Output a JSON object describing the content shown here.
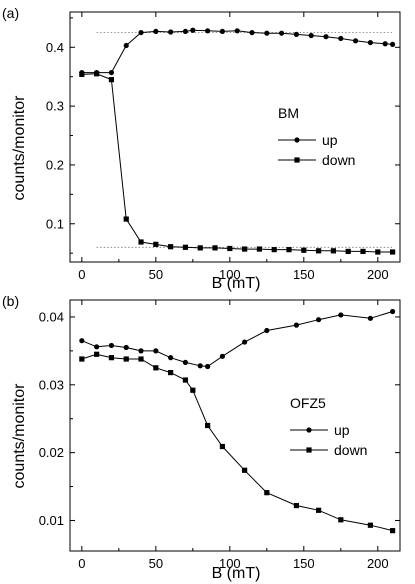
{
  "chart_data": [
    {
      "panel_label": "(a)",
      "type": "line",
      "xlabel": "B (mT)",
      "ylabel": "counts/monitor",
      "xlim": [
        -8,
        215
      ],
      "ylim": [
        0.035,
        0.46
      ],
      "xticks": [
        0,
        50,
        100,
        150,
        200
      ],
      "yticks": [
        0.1,
        0.2,
        0.3,
        0.4
      ],
      "grid": false,
      "legend": {
        "title": "BM",
        "placement": "right-middle"
      },
      "guide_lines": [
        {
          "x": [
            10,
            210
          ],
          "y": [
            0.425,
            0.425
          ]
        },
        {
          "x": [
            10,
            210
          ],
          "y": [
            0.06,
            0.06
          ]
        }
      ],
      "series": [
        {
          "name": "up",
          "marker": "circle",
          "x": [
            0,
            10,
            20,
            30,
            40,
            50,
            60,
            70,
            75,
            85,
            95,
            105,
            115,
            125,
            135,
            145,
            155,
            165,
            175,
            185,
            195,
            205,
            210
          ],
          "y": [
            0.357,
            0.357,
            0.357,
            0.403,
            0.425,
            0.427,
            0.426,
            0.427,
            0.429,
            0.428,
            0.427,
            0.428,
            0.425,
            0.424,
            0.424,
            0.422,
            0.42,
            0.418,
            0.415,
            0.411,
            0.408,
            0.406,
            0.405
          ]
        },
        {
          "name": "down",
          "marker": "square",
          "x": [
            0,
            10,
            20,
            30,
            40,
            50,
            60,
            70,
            80,
            90,
            100,
            110,
            120,
            130,
            140,
            150,
            160,
            170,
            180,
            190,
            200,
            210
          ],
          "y": [
            0.354,
            0.355,
            0.345,
            0.108,
            0.069,
            0.065,
            0.061,
            0.06,
            0.059,
            0.059,
            0.058,
            0.057,
            0.057,
            0.056,
            0.056,
            0.055,
            0.054,
            0.054,
            0.053,
            0.053,
            0.052,
            0.052
          ]
        }
      ]
    },
    {
      "panel_label": "(b)",
      "type": "line",
      "xlabel": "B (mT)",
      "ylabel": "counts/monitor",
      "xlim": [
        -8,
        215
      ],
      "ylim": [
        0.0055,
        0.0425
      ],
      "xticks": [
        0,
        50,
        100,
        150,
        200
      ],
      "yticks": [
        0.01,
        0.02,
        0.03,
        0.04
      ],
      "grid": false,
      "legend": {
        "title": "OFZ5",
        "placement": "right-middle"
      },
      "series": [
        {
          "name": "up",
          "marker": "circle",
          "x": [
            0,
            10,
            20,
            30,
            40,
            50,
            60,
            70,
            80,
            85,
            95,
            110,
            125,
            145,
            160,
            175,
            195,
            210
          ],
          "y": [
            0.0365,
            0.0356,
            0.0358,
            0.0355,
            0.035,
            0.035,
            0.034,
            0.0333,
            0.0328,
            0.0327,
            0.0342,
            0.0363,
            0.038,
            0.0388,
            0.0396,
            0.0403,
            0.0398,
            0.0408
          ]
        },
        {
          "name": "down",
          "marker": "square",
          "x": [
            0,
            10,
            20,
            30,
            40,
            50,
            60,
            70,
            75,
            85,
            95,
            110,
            125,
            145,
            160,
            175,
            195,
            210
          ],
          "y": [
            0.0338,
            0.0345,
            0.034,
            0.0338,
            0.0338,
            0.0325,
            0.0318,
            0.0307,
            0.0292,
            0.024,
            0.0209,
            0.0174,
            0.0141,
            0.0122,
            0.0115,
            0.0101,
            0.0093,
            0.0085
          ]
        }
      ]
    }
  ]
}
